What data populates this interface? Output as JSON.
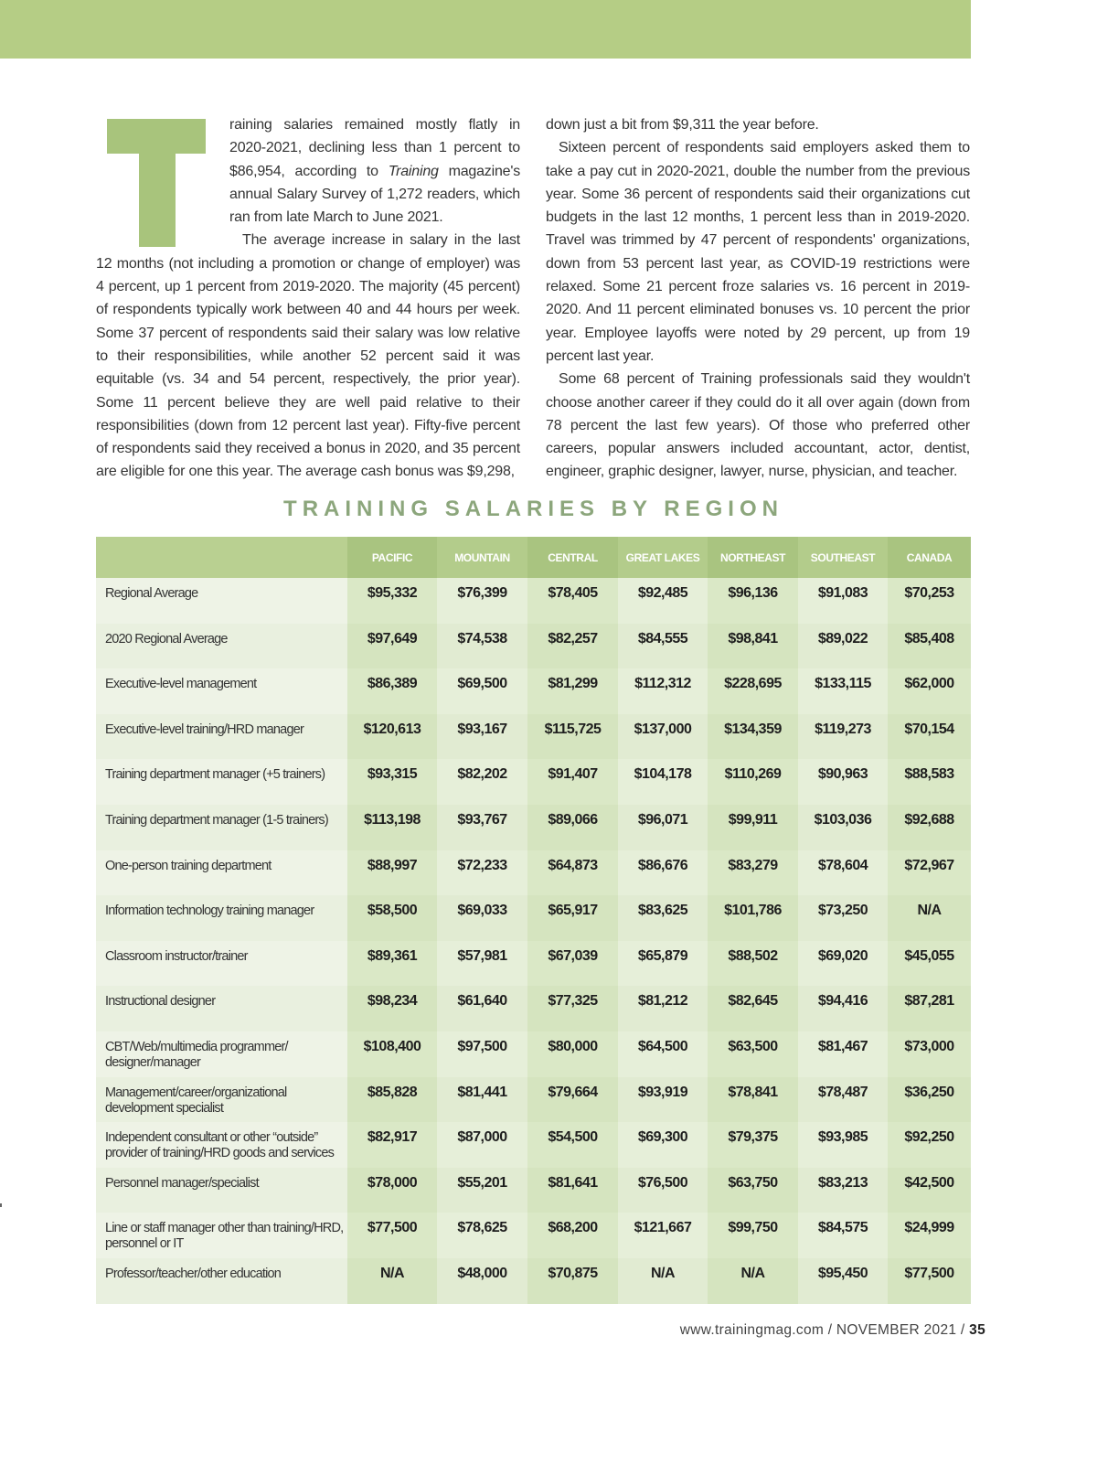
{
  "colors": {
    "header_bar": "#b5cd85",
    "drop_cap": "#a8c47c",
    "title": "#8ca67c",
    "table_header": "#b3cc8b"
  },
  "article": {
    "drop_cap": "T",
    "left_paragraphs": [
      "raining salaries remained mostly flatly in 2020-2021, declining less than 1 percent to $86,954, according to Training magazine's annual Salary Survey of 1,272 readers, which ran from late March to June 2021.",
      "The average increase in salary in the last 12 months (not including a promotion or change of employer) was 4 percent, up 1 percent from 2019-2020. The majority (45 percent) of respondents typically work between 40 and 44 hours per week. Some 37 percent of respondents said their salary was low relative to their responsibilities, while another 52 percent said it was equitable (vs. 34 and 54 percent, respectively, the prior year). Some 11 percent believe they are well paid relative to their responsibilities (down from 12 percent last year). Fifty-five percent of respondents said they received a bonus in 2020, and 35 percent are eligible for one this year. The average cash bonus was $9,298,"
    ],
    "right_paragraphs": [
      "down just a bit from $9,311 the year before.",
      "Sixteen percent of respondents said employers asked them to take a pay cut in 2020-2021, double the number from the previous year. Some 36 percent of respondents said their organizations cut budgets in the last 12 months, 1 percent less than in 2019-2020. Travel was trimmed by 47 percent of respondents' organizations, down from 53 percent last year, as COVID-19 restrictions were relaxed. Some 21 percent froze salaries vs. 16 percent in 2019-2020. And 11 percent eliminated bonuses vs. 10 percent the prior year. Employee layoffs were noted by 29 percent, up from 19 percent last year.",
      "Some 68 percent of Training professionals said they wouldn't choose another career if they could do it all over again (down from 78 percent the last few years). Of those who preferred other careers, popular answers included accountant, actor, dentist, engineer, graphic designer, lawyer, nurse, physician, and teacher."
    ]
  },
  "table": {
    "title": "TRAINING SALARIES BY REGION",
    "columns": [
      "PACIFIC",
      "MOUNTAIN",
      "CENTRAL",
      "GREAT LAKES",
      "NORTHEAST",
      "SOUTHEAST",
      "CANADA"
    ],
    "rows": [
      {
        "label": "Regional Average",
        "values": [
          "$95,332",
          "$76,399",
          "$78,405",
          "$92,485",
          "$96,136",
          "$91,083",
          "$70,253"
        ]
      },
      {
        "label": "2020 Regional Average",
        "values": [
          "$97,649",
          "$74,538",
          "$82,257",
          "$84,555",
          "$98,841",
          "$89,022",
          "$85,408"
        ]
      },
      {
        "label": "Executive-level management",
        "values": [
          "$86,389",
          "$69,500",
          "$81,299",
          "$112,312",
          "$228,695",
          "$133,115",
          "$62,000"
        ]
      },
      {
        "label": "Executive-level training/HRD manager",
        "values": [
          "$120,613",
          "$93,167",
          "$115,725",
          "$137,000",
          "$134,359",
          "$119,273",
          "$70,154"
        ]
      },
      {
        "label": "Training department manager (+5 trainers)",
        "values": [
          "$93,315",
          "$82,202",
          "$91,407",
          "$104,178",
          "$110,269",
          "$90,963",
          "$88,583"
        ]
      },
      {
        "label": "Training department manager (1-5 trainers)",
        "values": [
          "$113,198",
          "$93,767",
          "$89,066",
          "$96,071",
          "$99,911",
          "$103,036",
          "$92,688"
        ]
      },
      {
        "label": "One-person training department",
        "values": [
          "$88,997",
          "$72,233",
          "$64,873",
          "$86,676",
          "$83,279",
          "$78,604",
          "$72,967"
        ]
      },
      {
        "label": "Information technology training manager",
        "values": [
          "$58,500",
          "$69,033",
          "$65,917",
          "$83,625",
          "$101,786",
          "$73,250",
          "N/A"
        ]
      },
      {
        "label": "Classroom instructor/trainer",
        "values": [
          "$89,361",
          "$57,981",
          "$67,039",
          "$65,879",
          "$88,502",
          "$69,020",
          "$45,055"
        ]
      },
      {
        "label": "Instructional designer",
        "values": [
          "$98,234",
          "$61,640",
          "$77,325",
          "$81,212",
          "$82,645",
          "$94,416",
          "$87,281"
        ]
      },
      {
        "label": "CBT/Web/multimedia programmer/ designer/manager",
        "values": [
          "$108,400",
          "$97,500",
          "$80,000",
          "$64,500",
          "$63,500",
          "$81,467",
          "$73,000"
        ]
      },
      {
        "label": "Management/career/organizational development specialist",
        "values": [
          "$85,828",
          "$81,441",
          "$79,664",
          "$93,919",
          "$78,841",
          "$78,487",
          "$36,250"
        ]
      },
      {
        "label": "Independent consultant or other “outside” provider of training/HRD goods and services",
        "values": [
          "$82,917",
          "$87,000",
          "$54,500",
          "$69,300",
          "$79,375",
          "$93,985",
          "$92,250"
        ]
      },
      {
        "label": "Personnel manager/specialist",
        "values": [
          "$78,000",
          "$55,201",
          "$81,641",
          "$76,500",
          "$63,750",
          "$83,213",
          "$42,500"
        ]
      },
      {
        "label": "Line or staff manager other than training/HRD, personnel or IT",
        "values": [
          "$77,500",
          "$78,625",
          "$68,200",
          "$121,667",
          "$99,750",
          "$84,575",
          "$24,999"
        ]
      },
      {
        "label": "Professor/teacher/other education",
        "values": [
          "N/A",
          "$48,000",
          "$70,875",
          "N/A",
          "N/A",
          "$95,450",
          "$77,500"
        ]
      }
    ]
  },
  "footer": {
    "site": "www.trainingmag.com",
    "issue": "NOVEMBER 2021",
    "page": "35"
  }
}
